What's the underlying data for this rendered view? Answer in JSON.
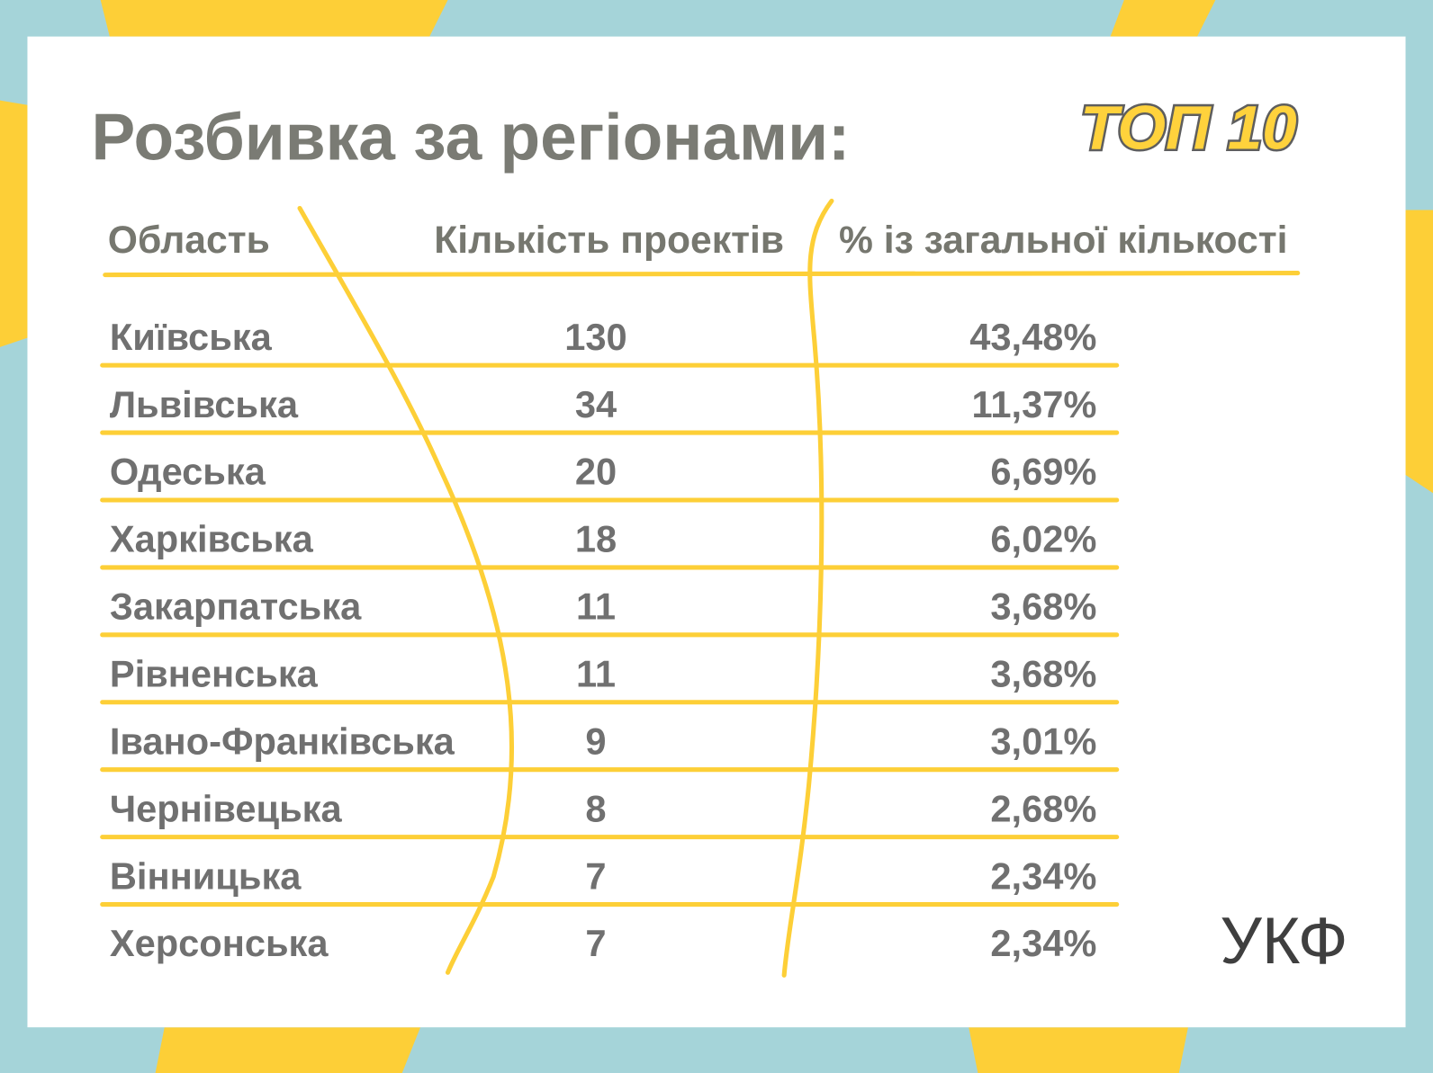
{
  "header": {
    "title": "Розбивка за регіонами:",
    "badge": "ТОП 10"
  },
  "table": {
    "columns": [
      "Область",
      "Кількість проектів",
      "% із загальної кількості"
    ],
    "rows": [
      [
        "Київська",
        130,
        "43,48%"
      ],
      [
        "Львівська",
        34,
        "11,37%"
      ],
      [
        "Одеська",
        20,
        "6,69%"
      ],
      [
        "Харківська",
        18,
        "6,02%"
      ],
      [
        "Закарпатська",
        11,
        "3,68%"
      ],
      [
        "Рівненська",
        11,
        "3,68%"
      ],
      [
        "Івано-Франківська",
        9,
        "3,01%"
      ],
      [
        "Чернівецька",
        8,
        "2,68%"
      ],
      [
        "Вінницька",
        7,
        "2,34%"
      ],
      [
        "Херсонська",
        7,
        "2,34%"
      ]
    ]
  },
  "logo": "УКФ"
}
